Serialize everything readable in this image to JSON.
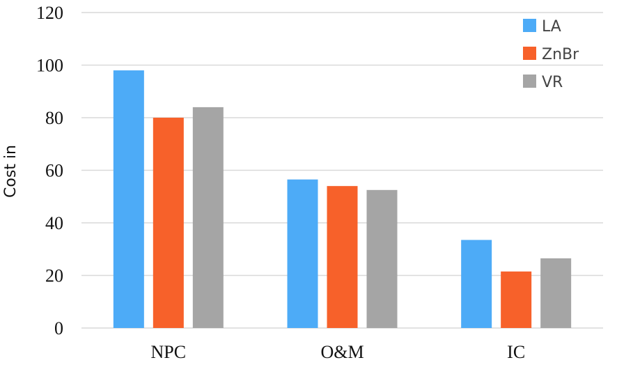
{
  "chart_data": {
    "type": "bar",
    "title": "",
    "xlabel": "",
    "ylabel": "Cost in",
    "categories": [
      "NPC",
      "O&M",
      "IC"
    ],
    "series": [
      {
        "name": "LA",
        "color": "#4dabf7",
        "values": [
          98,
          56.5,
          33.5
        ]
      },
      {
        "name": "ZnBr",
        "color": "#f7612a",
        "values": [
          80,
          54,
          21.5
        ]
      },
      {
        "name": "VR",
        "color": "#a5a5a5",
        "values": [
          84,
          52.5,
          26.5
        ]
      }
    ],
    "ylim": [
      0,
      120
    ],
    "yticks": [
      "0",
      "20",
      "40",
      "60",
      "80",
      "100",
      "120"
    ],
    "grid": true,
    "legend_position": "top-right"
  }
}
